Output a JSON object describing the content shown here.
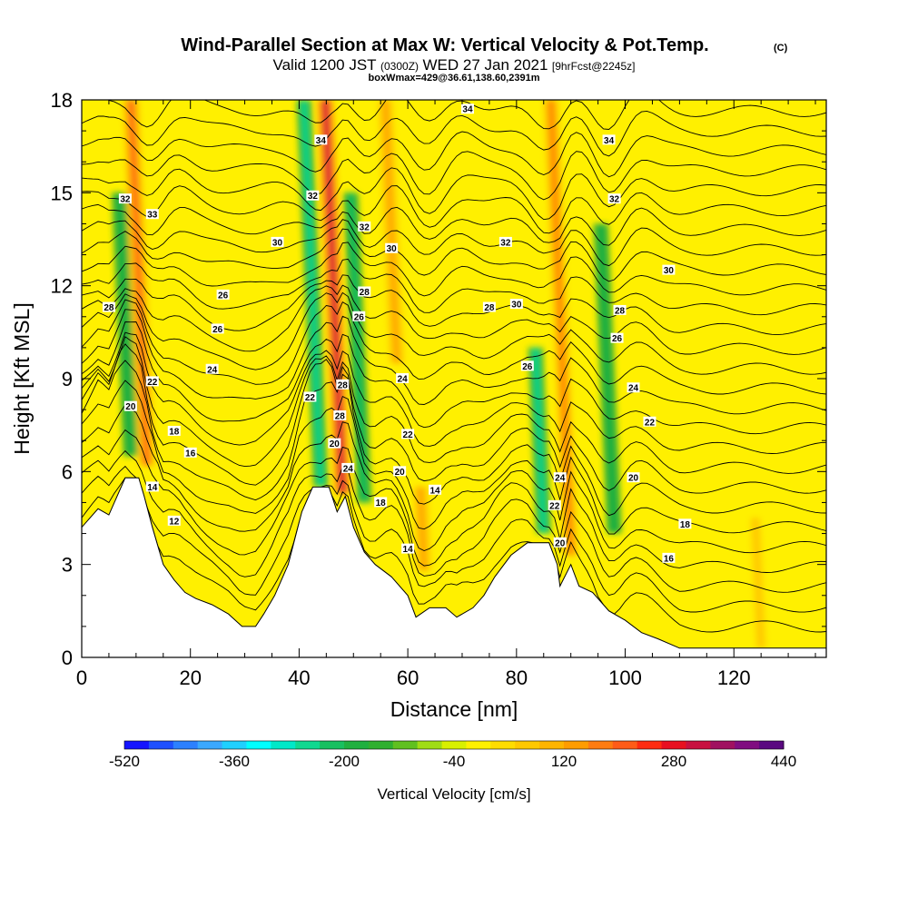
{
  "header": {
    "title_main": "Wind-Parallel Section at Max W: Vertical Velocity & Pot.Temp.",
    "title_mark": "(C)",
    "subtitle_valid": "Valid 1200 JST",
    "subtitle_z": "(0300Z)",
    "subtitle_date": "WED 27 Jan 2021",
    "subtitle_fcst": "[9hrFcst@2245z]",
    "box_line": "boxWmax=429@36.61,138.60,2391m"
  },
  "chart_data": {
    "type": "heatmap",
    "title": "Wind-Parallel Section at Max W: Vertical Velocity & Pot.Temp.",
    "xlabel": "Distance [nm]",
    "ylabel": "Height [Kft MSL]",
    "xlim": [
      0,
      137
    ],
    "ylim": [
      0,
      18
    ],
    "x_ticks": [
      "0",
      "20",
      "40",
      "60",
      "80",
      "100",
      "120"
    ],
    "x_tick_values": [
      0,
      20,
      40,
      60,
      80,
      100,
      120
    ],
    "y_ticks": [
      "0",
      "3",
      "6",
      "9",
      "12",
      "15",
      "18"
    ],
    "y_tick_values": [
      0,
      3,
      6,
      9,
      12,
      15,
      18
    ],
    "grid": false,
    "background_field_color": "#fff000",
    "colorbar": {
      "label": "Vertical Velocity [cm/s]",
      "min": -520,
      "max": 440,
      "step": 40,
      "tick_labels": [
        "-520",
        "-360",
        "-200",
        "-40",
        "120",
        "280",
        "440"
      ],
      "tick_values": [
        -520,
        -360,
        -200,
        -40,
        120,
        280,
        440
      ],
      "colors": [
        "#1414ff",
        "#1e50ff",
        "#2c80ff",
        "#3aa8ff",
        "#20d0ff",
        "#00ffff",
        "#00e8c8",
        "#10d890",
        "#18c060",
        "#20b040",
        "#30b030",
        "#60c020",
        "#a0dc14",
        "#d8f000",
        "#fff000",
        "#ffdc00",
        "#ffc800",
        "#ffb400",
        "#ff9c00",
        "#ff7c10",
        "#ff5c18",
        "#ff2c10",
        "#e81020",
        "#c81040",
        "#a01060",
        "#800c80",
        "#5a0880"
      ]
    },
    "updraft_bands": [
      {
        "x": 12,
        "z_top": 18,
        "z_bottom": 6.2,
        "w_peak": 280
      },
      {
        "x": 48,
        "z_top": 18,
        "z_bottom": 5.3,
        "w_peak": 429
      },
      {
        "x": 58,
        "z_top": 18,
        "z_bottom": 9.5,
        "w_peak": 200
      },
      {
        "x": 63,
        "z_top": 5.5,
        "z_bottom": 2.8,
        "w_peak": 200
      },
      {
        "x": 90,
        "z_top": 18,
        "z_bottom": 3.3,
        "w_peak": 250
      },
      {
        "x": 125,
        "z_top": 4.5,
        "z_bottom": 0.3,
        "w_peak": 150
      }
    ],
    "downdraft_bands": [
      {
        "x": 9,
        "z_top": 15,
        "z_bottom": 6.5,
        "w_min": -160
      },
      {
        "x": 44,
        "z_top": 18,
        "z_bottom": 5.5,
        "w_min": -240
      },
      {
        "x": 52,
        "z_top": 15,
        "z_bottom": 5,
        "w_min": -200
      },
      {
        "x": 85,
        "z_top": 10,
        "z_bottom": 4,
        "w_min": -220
      },
      {
        "x": 98,
        "z_top": 14,
        "z_bottom": 4,
        "w_min": -160
      }
    ],
    "terrain_kft": [
      [
        0,
        4.2
      ],
      [
        3,
        4.8
      ],
      [
        5,
        4.6
      ],
      [
        8,
        5.8
      ],
      [
        10.5,
        5.8
      ],
      [
        11.5,
        5.2
      ],
      [
        13,
        4.2
      ],
      [
        15,
        3.0
      ],
      [
        17,
        2.5
      ],
      [
        19,
        2.1
      ],
      [
        21,
        1.9
      ],
      [
        24,
        1.7
      ],
      [
        27,
        1.4
      ],
      [
        29.5,
        1.0
      ],
      [
        32,
        1.0
      ],
      [
        33.5,
        1.4
      ],
      [
        35.5,
        2.0
      ],
      [
        38,
        3.0
      ],
      [
        40.5,
        4.7
      ],
      [
        42.5,
        5.5
      ],
      [
        45.5,
        5.5
      ],
      [
        47,
        4.7
      ],
      [
        48.5,
        5.2
      ],
      [
        50,
        4.2
      ],
      [
        52,
        3.4
      ],
      [
        54,
        3.0
      ],
      [
        57,
        2.6
      ],
      [
        60,
        2.0
      ],
      [
        61.5,
        1.3
      ],
      [
        64,
        1.6
      ],
      [
        67,
        1.6
      ],
      [
        69,
        1.3
      ],
      [
        72,
        1.6
      ],
      [
        74,
        2.0
      ],
      [
        76,
        2.6
      ],
      [
        79,
        3.3
      ],
      [
        82,
        3.7
      ],
      [
        86,
        3.7
      ],
      [
        87.5,
        3.0
      ],
      [
        88,
        2.3
      ],
      [
        90,
        3.0
      ],
      [
        91.5,
        2.3
      ],
      [
        94,
        2.1
      ],
      [
        97,
        1.5
      ],
      [
        100,
        1.2
      ],
      [
        103,
        0.8
      ],
      [
        106,
        0.6
      ],
      [
        110,
        0.3
      ],
      [
        137,
        0.3
      ]
    ],
    "theta_contour_levels": [
      10,
      11,
      12,
      13,
      14,
      15,
      16,
      17,
      18,
      19,
      20,
      21,
      22,
      23,
      24,
      25,
      26,
      27,
      28,
      29,
      30,
      31,
      32,
      33,
      34,
      35,
      36
    ],
    "contour_labels": [
      {
        "text": "32",
        "x": 8,
        "z": 14.8
      },
      {
        "text": "33",
        "x": 13,
        "z": 14.3
      },
      {
        "text": "28",
        "x": 5,
        "z": 11.3
      },
      {
        "text": "22",
        "x": 13,
        "z": 8.9
      },
      {
        "text": "20",
        "x": 9,
        "z": 8.1
      },
      {
        "text": "18",
        "x": 17,
        "z": 7.3
      },
      {
        "text": "16",
        "x": 20,
        "z": 6.6
      },
      {
        "text": "14",
        "x": 13,
        "z": 5.5
      },
      {
        "text": "12",
        "x": 17,
        "z": 4.4
      },
      {
        "text": "26",
        "x": 26,
        "z": 11.7
      },
      {
        "text": "26",
        "x": 25,
        "z": 10.6
      },
      {
        "text": "24",
        "x": 24,
        "z": 9.3
      },
      {
        "text": "30",
        "x": 36,
        "z": 13.4
      },
      {
        "text": "34",
        "x": 44,
        "z": 16.7
      },
      {
        "text": "32",
        "x": 42.5,
        "z": 14.9
      },
      {
        "text": "22",
        "x": 42,
        "z": 8.4
      },
      {
        "text": "28",
        "x": 48,
        "z": 8.8
      },
      {
        "text": "28",
        "x": 47.5,
        "z": 7.8
      },
      {
        "text": "20",
        "x": 46.5,
        "z": 6.9
      },
      {
        "text": "24",
        "x": 49,
        "z": 6.1
      },
      {
        "text": "32",
        "x": 52,
        "z": 13.9
      },
      {
        "text": "30",
        "x": 57,
        "z": 13.2
      },
      {
        "text": "28",
        "x": 52,
        "z": 11.8
      },
      {
        "text": "26",
        "x": 51,
        "z": 11.0
      },
      {
        "text": "24",
        "x": 59,
        "z": 9.0
      },
      {
        "text": "22",
        "x": 60,
        "z": 7.2
      },
      {
        "text": "20",
        "x": 58.5,
        "z": 6.0
      },
      {
        "text": "18",
        "x": 55,
        "z": 5.0
      },
      {
        "text": "14",
        "x": 65,
        "z": 5.4
      },
      {
        "text": "14",
        "x": 60,
        "z": 3.5
      },
      {
        "text": "34",
        "x": 71,
        "z": 17.7
      },
      {
        "text": "32",
        "x": 78,
        "z": 13.4
      },
      {
        "text": "28",
        "x": 75,
        "z": 11.3
      },
      {
        "text": "30",
        "x": 80,
        "z": 11.4
      },
      {
        "text": "26",
        "x": 82,
        "z": 9.4
      },
      {
        "text": "24",
        "x": 88,
        "z": 5.8
      },
      {
        "text": "22",
        "x": 87,
        "z": 4.9
      },
      {
        "text": "20",
        "x": 88,
        "z": 3.7
      },
      {
        "text": "34",
        "x": 97,
        "z": 16.7
      },
      {
        "text": "32",
        "x": 98,
        "z": 14.8
      },
      {
        "text": "30",
        "x": 108,
        "z": 12.5
      },
      {
        "text": "28",
        "x": 99,
        "z": 11.2
      },
      {
        "text": "26",
        "x": 98.5,
        "z": 10.3
      },
      {
        "text": "24",
        "x": 101.5,
        "z": 8.7
      },
      {
        "text": "22",
        "x": 104.5,
        "z": 7.6
      },
      {
        "text": "20",
        "x": 101.5,
        "z": 5.8
      },
      {
        "text": "18",
        "x": 111,
        "z": 4.3
      },
      {
        "text": "16",
        "x": 108,
        "z": 3.2
      }
    ]
  }
}
